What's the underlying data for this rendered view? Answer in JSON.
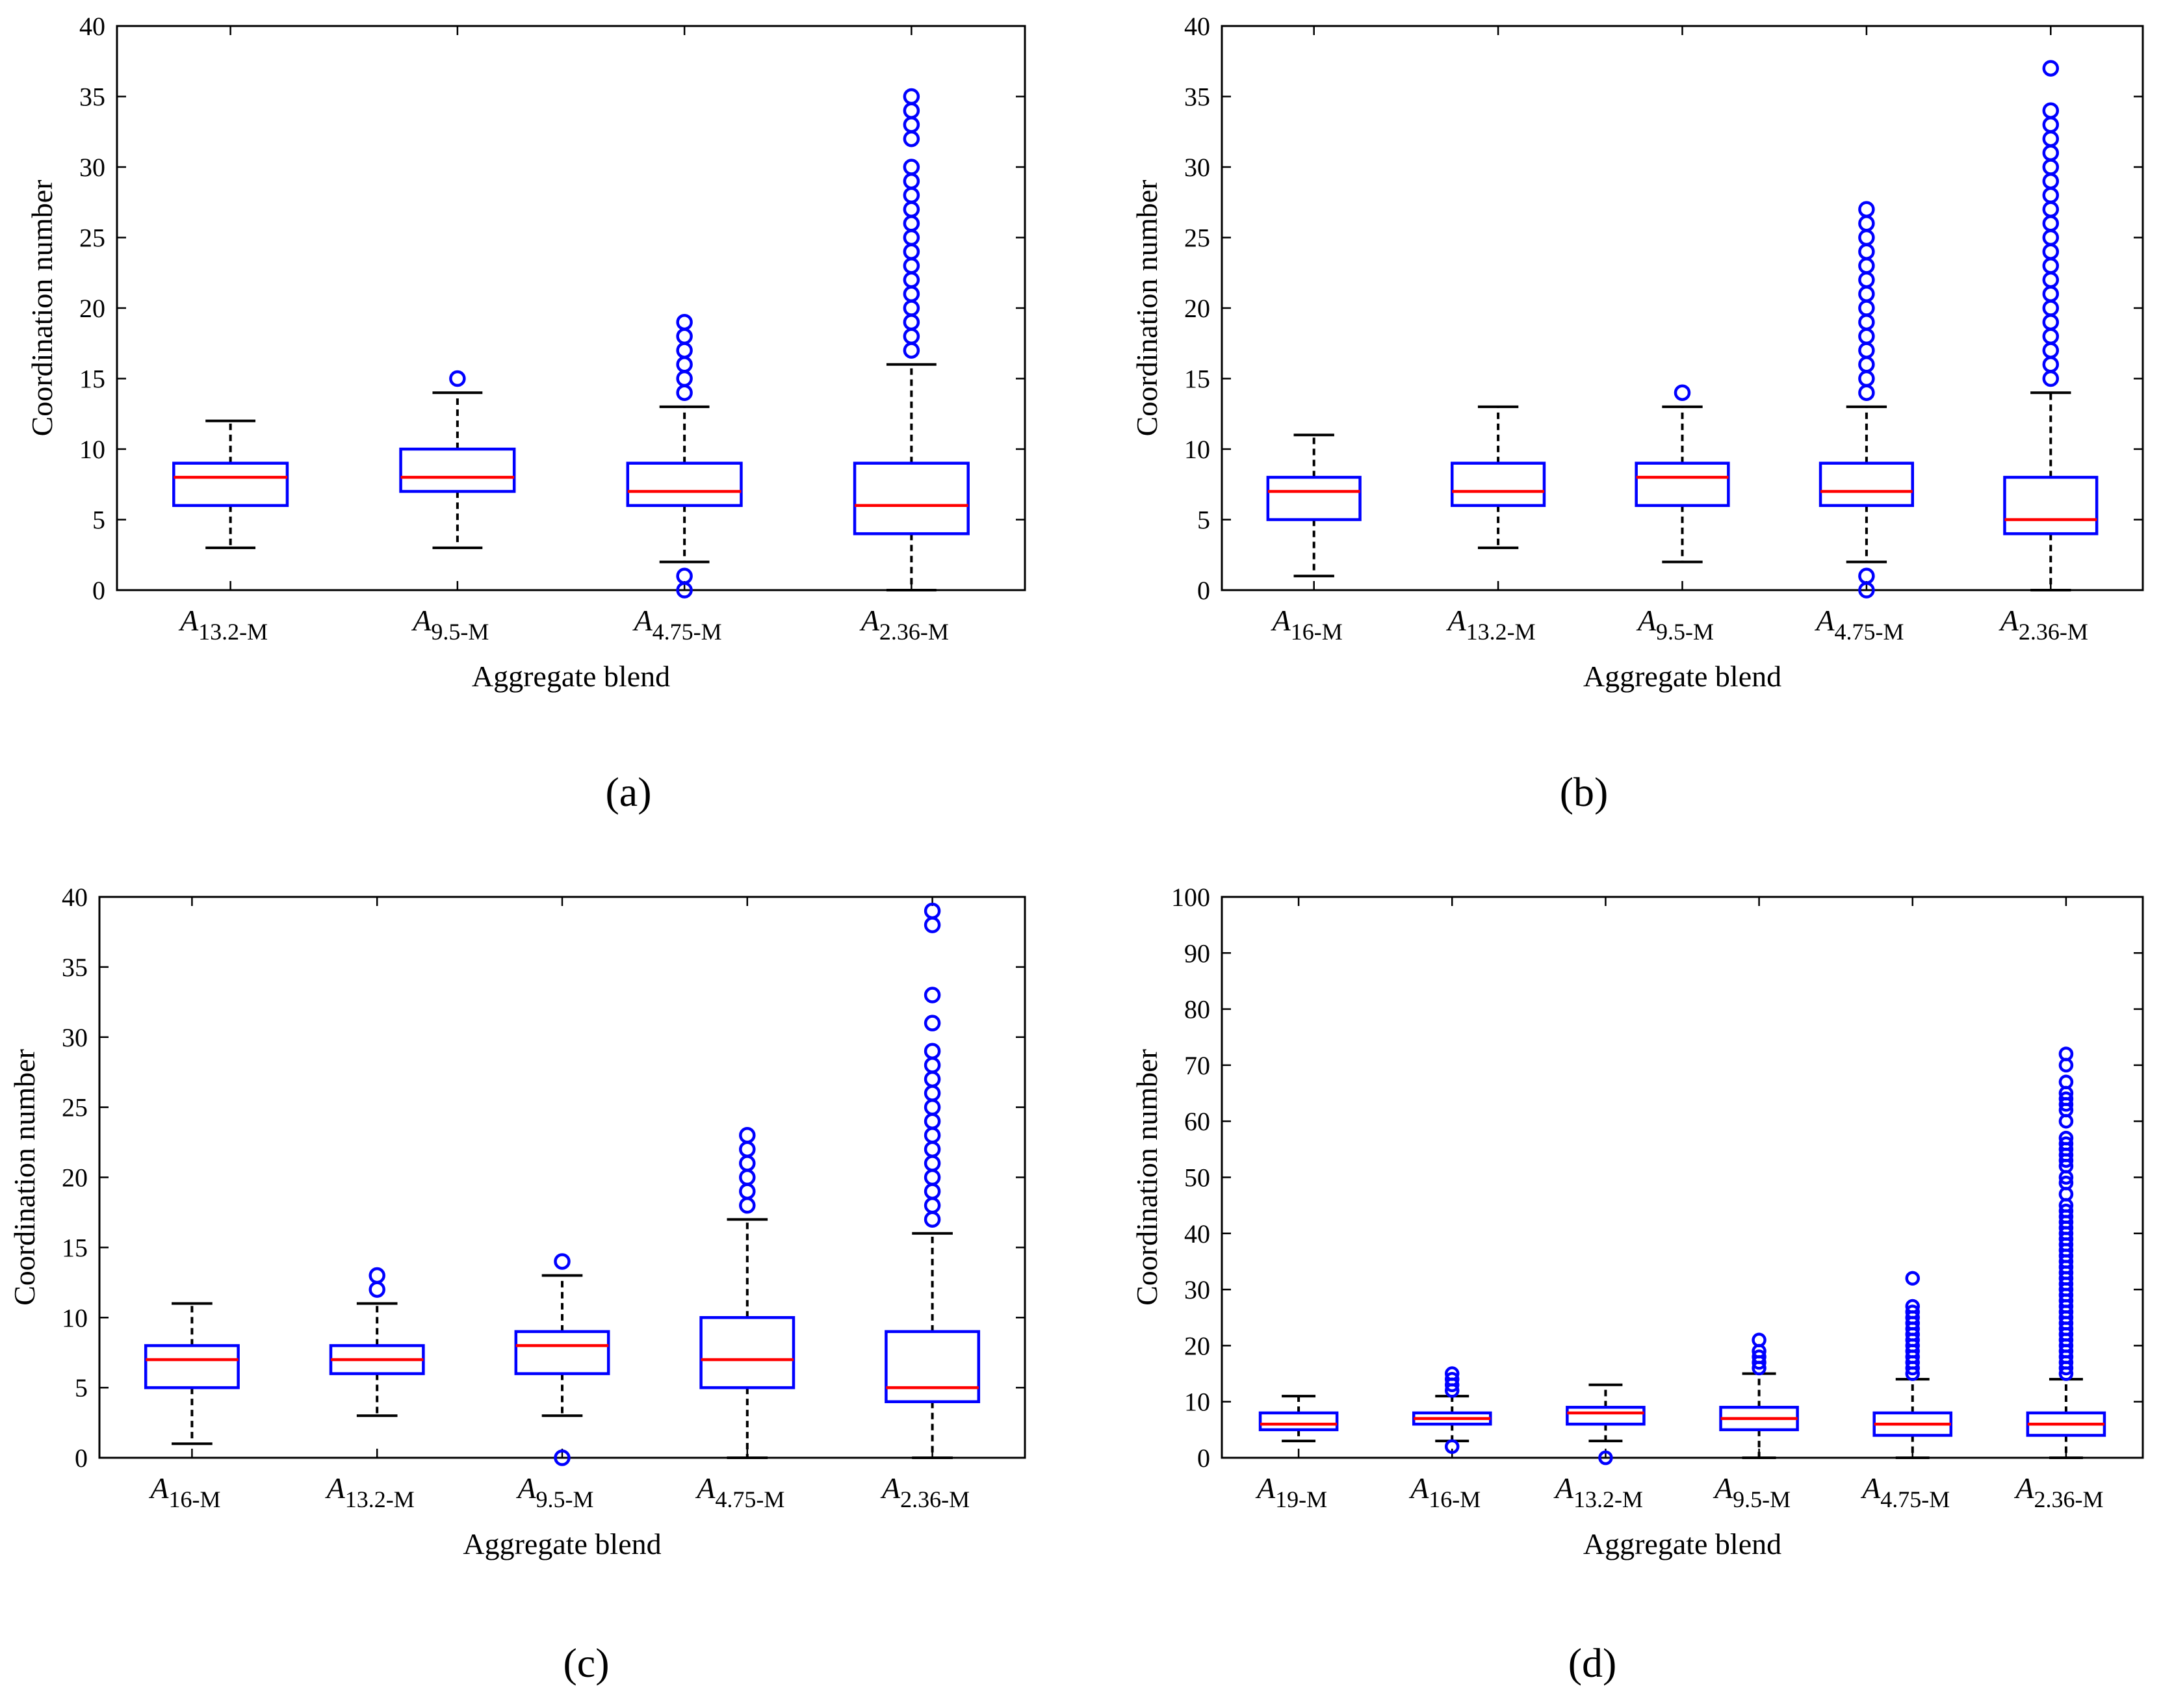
{
  "colors": {
    "box": "#0000ff",
    "median": "#ff0000",
    "whisker": "#000000",
    "outlier": "#0000ff",
    "axes": "#000000",
    "background": "#ffffff"
  },
  "chart_data": [
    {
      "panel": "(a)",
      "type": "box",
      "title": "",
      "xlabel": "Aggregate blend",
      "ylabel": "Coordination number",
      "ylim": [
        0,
        40
      ],
      "yticks": [
        0,
        5,
        10,
        15,
        20,
        25,
        30,
        35,
        40
      ],
      "grid": false,
      "categories": [
        {
          "main": "A",
          "sub": "13.2-M",
          "q1": 6,
          "median": 8,
          "q3": 9,
          "whisker_low": 3,
          "whisker_high": 12,
          "outliers": []
        },
        {
          "main": "A",
          "sub": "9.5-M",
          "q1": 7,
          "median": 8,
          "q3": 10,
          "whisker_low": 3,
          "whisker_high": 14,
          "outliers": [
            15
          ]
        },
        {
          "main": "A",
          "sub": "4.75-M",
          "q1": 6,
          "median": 7,
          "q3": 9,
          "whisker_low": 2,
          "whisker_high": 13,
          "outliers": [
            0,
            1,
            14,
            15,
            16,
            17,
            18,
            19
          ]
        },
        {
          "main": "A",
          "sub": "2.36-M",
          "q1": 4,
          "median": 6,
          "q3": 9,
          "whisker_low": 0,
          "whisker_high": 16,
          "outliers": [
            17,
            18,
            19,
            20,
            21,
            22,
            23,
            24,
            25,
            26,
            27,
            28,
            29,
            30,
            32,
            33,
            34,
            35
          ]
        }
      ]
    },
    {
      "panel": "(b)",
      "type": "box",
      "title": "",
      "xlabel": "Aggregate blend",
      "ylabel": "Coordination number",
      "ylim": [
        0,
        40
      ],
      "yticks": [
        0,
        5,
        10,
        15,
        20,
        25,
        30,
        35,
        40
      ],
      "grid": false,
      "categories": [
        {
          "main": "A",
          "sub": "16-M",
          "q1": 5,
          "median": 7,
          "q3": 8,
          "whisker_low": 1,
          "whisker_high": 11,
          "outliers": []
        },
        {
          "main": "A",
          "sub": "13.2-M",
          "q1": 6,
          "median": 7,
          "q3": 9,
          "whisker_low": 3,
          "whisker_high": 13,
          "outliers": []
        },
        {
          "main": "A",
          "sub": "9.5-M",
          "q1": 6,
          "median": 8,
          "q3": 9,
          "whisker_low": 2,
          "whisker_high": 13,
          "outliers": [
            14
          ]
        },
        {
          "main": "A",
          "sub": "4.75-M",
          "q1": 6,
          "median": 7,
          "q3": 9,
          "whisker_low": 2,
          "whisker_high": 13,
          "outliers": [
            0,
            1,
            14,
            15,
            16,
            17,
            18,
            19,
            20,
            21,
            22,
            23,
            24,
            25,
            26,
            27
          ]
        },
        {
          "main": "A",
          "sub": "2.36-M",
          "q1": 4,
          "median": 5,
          "q3": 8,
          "whisker_low": 0,
          "whisker_high": 14,
          "outliers": [
            15,
            16,
            17,
            18,
            19,
            20,
            21,
            22,
            23,
            24,
            25,
            26,
            27,
            28,
            29,
            30,
            31,
            32,
            33,
            34,
            37
          ]
        }
      ]
    },
    {
      "panel": "(c)",
      "type": "box",
      "title": "",
      "xlabel": "Aggregate blend",
      "ylabel": "Coordination number",
      "ylim": [
        0,
        40
      ],
      "yticks": [
        0,
        5,
        10,
        15,
        20,
        25,
        30,
        35,
        40
      ],
      "grid": false,
      "categories": [
        {
          "main": "A",
          "sub": "16-M",
          "q1": 5,
          "median": 7,
          "q3": 8,
          "whisker_low": 1,
          "whisker_high": 11,
          "outliers": []
        },
        {
          "main": "A",
          "sub": "13.2-M",
          "q1": 6,
          "median": 7,
          "q3": 8,
          "whisker_low": 3,
          "whisker_high": 11,
          "outliers": [
            12,
            13
          ]
        },
        {
          "main": "A",
          "sub": "9.5-M",
          "q1": 6,
          "median": 8,
          "q3": 9,
          "whisker_low": 3,
          "whisker_high": 13,
          "outliers": [
            0,
            14
          ]
        },
        {
          "main": "A",
          "sub": "4.75-M",
          "q1": 5,
          "median": 7,
          "q3": 10,
          "whisker_low": 0,
          "whisker_high": 17,
          "outliers": [
            18,
            19,
            20,
            21,
            22,
            23
          ]
        },
        {
          "main": "A",
          "sub": "2.36-M",
          "q1": 4,
          "median": 5,
          "q3": 9,
          "whisker_low": 0,
          "whisker_high": 16,
          "outliers": [
            17,
            18,
            19,
            20,
            21,
            22,
            23,
            24,
            25,
            26,
            27,
            28,
            29,
            31,
            33,
            38,
            39
          ]
        }
      ]
    },
    {
      "panel": "(d)",
      "type": "box",
      "title": "",
      "xlabel": "Aggregate blend",
      "ylabel": "Coordination number",
      "ylim": [
        0,
        100
      ],
      "yticks": [
        0,
        10,
        20,
        30,
        40,
        50,
        60,
        70,
        80,
        90,
        100
      ],
      "grid": false,
      "categories": [
        {
          "main": "A",
          "sub": "19-M",
          "q1": 5,
          "median": 6,
          "q3": 8,
          "whisker_low": 3,
          "whisker_high": 11,
          "outliers": []
        },
        {
          "main": "A",
          "sub": "16-M",
          "q1": 6,
          "median": 7,
          "q3": 8,
          "whisker_low": 3,
          "whisker_high": 11,
          "outliers": [
            2,
            12,
            13,
            14,
            15
          ]
        },
        {
          "main": "A",
          "sub": "13.2-M",
          "q1": 6,
          "median": 8,
          "q3": 9,
          "whisker_low": 3,
          "whisker_high": 13,
          "outliers": [
            0
          ]
        },
        {
          "main": "A",
          "sub": "9.5-M",
          "q1": 5,
          "median": 7,
          "q3": 9,
          "whisker_low": 0,
          "whisker_high": 15,
          "outliers": [
            16,
            17,
            18,
            19,
            21
          ]
        },
        {
          "main": "A",
          "sub": "4.75-M",
          "q1": 4,
          "median": 6,
          "q3": 8,
          "whisker_low": 0,
          "whisker_high": 14,
          "outliers": [
            15,
            16,
            17,
            18,
            19,
            20,
            21,
            22,
            23,
            24,
            25,
            26,
            27,
            32
          ]
        },
        {
          "main": "A",
          "sub": "2.36-M",
          "q1": 4,
          "median": 6,
          "q3": 8,
          "whisker_low": 0,
          "whisker_high": 14,
          "outliers": [
            15,
            16,
            17,
            18,
            19,
            20,
            21,
            22,
            23,
            24,
            25,
            26,
            27,
            28,
            29,
            30,
            31,
            32,
            33,
            34,
            35,
            36,
            37,
            38,
            39,
            40,
            41,
            42,
            43,
            44,
            45,
            47,
            49,
            50,
            52,
            53,
            54,
            55,
            56,
            57,
            60,
            62,
            63,
            64,
            65,
            67,
            70,
            72
          ]
        }
      ]
    }
  ]
}
